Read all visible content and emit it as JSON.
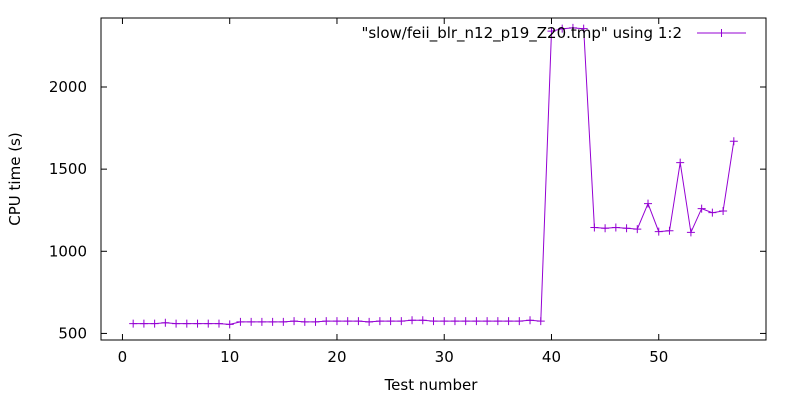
{
  "chart_data": {
    "type": "line",
    "xlabel": "Test number",
    "ylabel": "CPU time (s)",
    "xlim": [
      -2,
      60
    ],
    "ylim": [
      460,
      2420
    ],
    "xticks": [
      0,
      10,
      20,
      30,
      40,
      50
    ],
    "yticks": [
      500,
      1000,
      1500,
      2000
    ],
    "grid": false,
    "legend_position": "top-right",
    "series": [
      {
        "name": "\"slow/feii_blr_n12_p19_Z20.tmp\" using 1:2",
        "color": "#9400d3",
        "marker": "plus",
        "x": [
          1,
          2,
          3,
          4,
          5,
          6,
          7,
          8,
          9,
          10,
          11,
          12,
          13,
          14,
          15,
          16,
          17,
          18,
          19,
          20,
          21,
          22,
          23,
          24,
          25,
          26,
          27,
          28,
          29,
          30,
          31,
          32,
          33,
          34,
          35,
          36,
          37,
          38,
          39,
          40,
          41,
          42,
          43,
          44,
          45,
          46,
          47,
          48,
          49,
          50,
          51,
          52,
          53,
          54,
          55,
          56,
          57
        ],
        "y": [
          560,
          560,
          560,
          565,
          560,
          560,
          560,
          560,
          560,
          555,
          570,
          570,
          570,
          570,
          570,
          575,
          570,
          570,
          575,
          575,
          575,
          575,
          570,
          575,
          575,
          575,
          580,
          580,
          575,
          575,
          575,
          575,
          575,
          575,
          575,
          575,
          575,
          580,
          575,
          2340,
          2355,
          2360,
          2355,
          1145,
          1140,
          1145,
          1140,
          1135,
          1290,
          1120,
          1125,
          1540,
          1115,
          1260,
          1235,
          1245,
          1670
        ]
      }
    ]
  }
}
